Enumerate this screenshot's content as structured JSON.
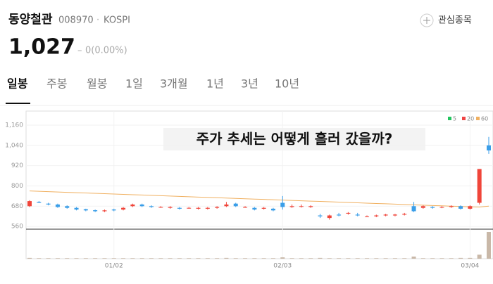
{
  "header": {
    "name": "동양철관",
    "code": "008970",
    "separator": "·",
    "market": "KOSPI",
    "watch": "관심종목",
    "price": "1,027",
    "change_sign": "–",
    "change": "0(0.00%)"
  },
  "tabs": [
    "일봉",
    "주봉",
    "월봉",
    "1일",
    "3개월",
    "1년",
    "3년",
    "10년"
  ],
  "chart": {
    "type": "candlestick",
    "annotation": "주가 추세는 어떻게 흘러 갔을까?",
    "legend": [
      {
        "name": "5",
        "color": "#22c55e"
      },
      {
        "name": "20",
        "color": "#ef4444"
      },
      {
        "name": "60",
        "color": "#f0b060"
      }
    ],
    "up_color": "#f0453a",
    "down_color": "#3a9ee8",
    "ylim": [
      548,
      1214
    ],
    "yticks": [
      {
        "value": 1160,
        "label": "1,160"
      },
      {
        "value": 1040,
        "label": "1,040"
      },
      920,
      800,
      680,
      560
    ],
    "xlabels": [
      {
        "index": 9,
        "label": "01/02"
      },
      {
        "index": 27,
        "label": "02/03"
      },
      {
        "index": 47,
        "label": "03/04"
      }
    ],
    "candles": [
      [
        680,
        715,
        675,
        710
      ],
      [
        705,
        710,
        698,
        700
      ],
      [
        695,
        700,
        685,
        690
      ],
      [
        690,
        695,
        670,
        675
      ],
      [
        680,
        685,
        665,
        670
      ],
      [
        670,
        675,
        655,
        660
      ],
      [
        662,
        665,
        650,
        655
      ],
      [
        656,
        660,
        645,
        650
      ],
      [
        650,
        660,
        645,
        655
      ],
      [
        660,
        665,
        650,
        655
      ],
      [
        660,
        675,
        655,
        670
      ],
      [
        680,
        695,
        675,
        690
      ],
      [
        690,
        695,
        675,
        680
      ],
      [
        680,
        685,
        670,
        675
      ],
      [
        675,
        680,
        670,
        675
      ],
      [
        670,
        680,
        665,
        675
      ],
      [
        670,
        675,
        660,
        665
      ],
      [
        668,
        675,
        665,
        670
      ],
      [
        665,
        675,
        660,
        670
      ],
      [
        665,
        675,
        660,
        670
      ],
      [
        670,
        680,
        665,
        675
      ],
      [
        680,
        705,
        675,
        690
      ],
      [
        695,
        700,
        675,
        680
      ],
      [
        675,
        680,
        670,
        675
      ],
      [
        670,
        675,
        655,
        660
      ],
      [
        665,
        675,
        660,
        670
      ],
      [
        665,
        670,
        650,
        655
      ],
      [
        700,
        740,
        660,
        675
      ],
      [
        675,
        690,
        670,
        680
      ],
      [
        678,
        690,
        672,
        680
      ],
      [
        675,
        685,
        670,
        680
      ],
      [
        625,
        635,
        610,
        620
      ],
      [
        610,
        630,
        600,
        625
      ],
      [
        630,
        640,
        620,
        625
      ],
      [
        640,
        645,
        630,
        640
      ],
      [
        630,
        640,
        620,
        625
      ],
      [
        620,
        625,
        615,
        620
      ],
      [
        620,
        630,
        615,
        625
      ],
      [
        625,
        635,
        620,
        630
      ],
      [
        625,
        635,
        620,
        630
      ],
      [
        630,
        640,
        625,
        635
      ],
      [
        680,
        705,
        645,
        650
      ],
      [
        670,
        685,
        665,
        680
      ],
      [
        675,
        680,
        665,
        670
      ],
      [
        675,
        680,
        668,
        675
      ],
      [
        675,
        685,
        670,
        680
      ],
      [
        680,
        685,
        660,
        665
      ],
      [
        665,
        685,
        660,
        680
      ],
      [
        700,
        900,
        690,
        900
      ],
      [
        1040,
        1090,
        990,
        1010
      ]
    ],
    "volumes": [
      3,
      2,
      2,
      2,
      2,
      2,
      2,
      2,
      2,
      2,
      2,
      2,
      2,
      2,
      2,
      2,
      2,
      2,
      2,
      2,
      2,
      3,
      2,
      2,
      2,
      2,
      2,
      5,
      2,
      2,
      2,
      3,
      2,
      2,
      2,
      2,
      2,
      2,
      2,
      2,
      2,
      8,
      2,
      2,
      2,
      2,
      3,
      3,
      15,
      100
    ],
    "ma60": [
      770,
      768,
      766,
      764,
      762,
      760,
      758,
      756,
      754,
      752,
      750,
      748,
      746,
      744,
      742,
      740,
      738,
      736,
      734,
      732,
      730,
      728,
      726,
      724,
      722,
      720,
      718,
      716,
      714,
      712,
      710,
      708,
      706,
      704,
      702,
      700,
      698,
      696,
      694,
      692,
      690,
      688,
      686,
      684,
      682,
      680,
      678,
      676,
      675,
      680
    ]
  }
}
